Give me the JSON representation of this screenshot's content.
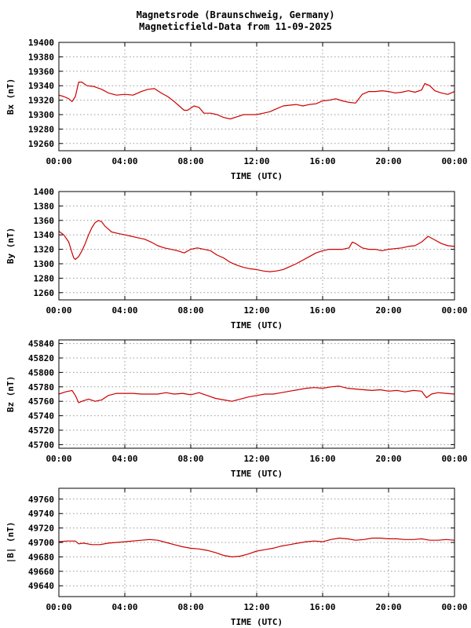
{
  "header": {
    "title": "Magnetsrode (Braunschweig, Germany)",
    "subtitle": "Magneticfield-Data from 11-09-2025"
  },
  "colors": {
    "trace": "#cc0000",
    "grid": "#999999",
    "frame": "#000000"
  },
  "chart_data": [
    {
      "type": "line",
      "ylabel": "Bx (nT)",
      "xlabel": "TIME (UTC)",
      "xlim": [
        0,
        24
      ],
      "xticks": [
        0,
        4,
        8,
        12,
        16,
        20,
        24
      ],
      "xtick_labels": [
        "00:00",
        "04:00",
        "08:00",
        "12:00",
        "16:00",
        "20:00",
        "00:00"
      ],
      "ylim": [
        19250,
        19400
      ],
      "yticks": [
        19260,
        19280,
        19300,
        19320,
        19340,
        19360,
        19380,
        19400
      ],
      "grid": true,
      "x": [
        0,
        0.3,
        0.6,
        0.8,
        1.0,
        1.2,
        1.4,
        1.7,
        2.1,
        2.6,
        3.0,
        3.5,
        4.0,
        4.5,
        5.0,
        5.4,
        5.8,
        6.2,
        6.6,
        7.0,
        7.3,
        7.6,
        7.8,
        8.2,
        8.5,
        8.8,
        9.2,
        9.6,
        10.0,
        10.4,
        10.8,
        11.2,
        11.6,
        12.0,
        12.4,
        12.8,
        13.2,
        13.6,
        14.0,
        14.4,
        14.8,
        15.2,
        15.6,
        16.0,
        16.4,
        16.8,
        17.2,
        17.6,
        18.0,
        18.4,
        18.8,
        19.2,
        19.6,
        20.0,
        20.4,
        20.8,
        21.2,
        21.6,
        22.0,
        22.2,
        22.5,
        22.8,
        23.2,
        23.6,
        24.0
      ],
      "values": [
        19327,
        19325,
        19322,
        19318,
        19325,
        19345,
        19345,
        19340,
        19339,
        19335,
        19330,
        19327,
        19328,
        19327,
        19332,
        19335,
        19336,
        19330,
        19325,
        19318,
        19312,
        19306,
        19306,
        19312,
        19310,
        19302,
        19302,
        19300,
        19296,
        19294,
        19297,
        19300,
        19300,
        19300,
        19302,
        19304,
        19308,
        19312,
        19313,
        19314,
        19312,
        19314,
        19315,
        19319,
        19320,
        19322,
        19319,
        19317,
        19316,
        19328,
        19332,
        19332,
        19333,
        19332,
        19330,
        19331,
        19333,
        19331,
        19334,
        19343,
        19340,
        19333,
        19330,
        19328,
        19332
      ]
    },
    {
      "type": "line",
      "ylabel": "By (nT)",
      "xlabel": "TIME (UTC)",
      "xlim": [
        0,
        24
      ],
      "xticks": [
        0,
        4,
        8,
        12,
        16,
        20,
        24
      ],
      "xtick_labels": [
        "00:00",
        "04:00",
        "08:00",
        "12:00",
        "16:00",
        "20:00",
        "00:00"
      ],
      "ylim": [
        1250,
        1400
      ],
      "yticks": [
        1260,
        1280,
        1300,
        1320,
        1340,
        1360,
        1380,
        1400
      ],
      "grid": true,
      "x": [
        0,
        0.3,
        0.6,
        0.8,
        0.9,
        1.0,
        1.2,
        1.4,
        1.6,
        1.8,
        2.0,
        2.2,
        2.4,
        2.6,
        2.8,
        3.0,
        3.2,
        3.6,
        4.0,
        4.4,
        4.8,
        5.2,
        5.6,
        6.0,
        6.4,
        6.8,
        7.2,
        7.6,
        8.0,
        8.4,
        8.8,
        9.2,
        9.6,
        10.0,
        10.4,
        10.8,
        11.2,
        11.6,
        12.0,
        12.4,
        12.8,
        13.2,
        13.6,
        14.0,
        14.4,
        14.8,
        15.2,
        15.6,
        16.0,
        16.4,
        16.8,
        17.2,
        17.6,
        17.8,
        18.0,
        18.4,
        18.8,
        19.2,
        19.6,
        20.0,
        20.4,
        20.8,
        21.2,
        21.6,
        22.0,
        22.4,
        22.8,
        23.2,
        23.6,
        24.0
      ],
      "values": [
        1345,
        1340,
        1330,
        1315,
        1308,
        1306,
        1310,
        1318,
        1328,
        1340,
        1350,
        1357,
        1360,
        1358,
        1352,
        1348,
        1344,
        1342,
        1340,
        1338,
        1336,
        1334,
        1330,
        1325,
        1322,
        1320,
        1318,
        1315,
        1320,
        1322,
        1320,
        1318,
        1312,
        1308,
        1302,
        1298,
        1295,
        1293,
        1292,
        1290,
        1289,
        1290,
        1292,
        1296,
        1300,
        1305,
        1310,
        1315,
        1318,
        1320,
        1320,
        1320,
        1322,
        1330,
        1328,
        1322,
        1320,
        1320,
        1318,
        1320,
        1321,
        1322,
        1324,
        1325,
        1330,
        1338,
        1333,
        1328,
        1325,
        1324
      ]
    },
    {
      "type": "line",
      "ylabel": "Bz (nT)",
      "xlabel": "TIME (UTC)",
      "xlim": [
        0,
        24
      ],
      "xticks": [
        0,
        4,
        8,
        12,
        16,
        20,
        24
      ],
      "xtick_labels": [
        "00:00",
        "04:00",
        "08:00",
        "12:00",
        "16:00",
        "20:00",
        "00:00"
      ],
      "ylim": [
        45695,
        45845
      ],
      "yticks": [
        45700,
        45720,
        45740,
        45760,
        45780,
        45800,
        45820,
        45840
      ],
      "grid": true,
      "x": [
        0,
        0.4,
        0.8,
        1.0,
        1.2,
        1.4,
        1.8,
        2.2,
        2.6,
        3.0,
        3.5,
        4.0,
        4.5,
        5.0,
        5.5,
        6.0,
        6.5,
        7.0,
        7.5,
        8.0,
        8.5,
        9.0,
        9.5,
        10.0,
        10.5,
        11.0,
        11.5,
        12.0,
        12.5,
        13.0,
        13.5,
        14.0,
        14.5,
        15.0,
        15.5,
        16.0,
        16.5,
        17.0,
        17.5,
        18.0,
        18.5,
        19.0,
        19.5,
        20.0,
        20.5,
        21.0,
        21.5,
        22.0,
        22.3,
        22.6,
        23.0,
        23.5,
        24.0
      ],
      "values": [
        45770,
        45773,
        45775,
        45768,
        45758,
        45760,
        45763,
        45760,
        45762,
        45768,
        45771,
        45771,
        45771,
        45770,
        45770,
        45770,
        45772,
        45770,
        45771,
        45769,
        45772,
        45768,
        45764,
        45762,
        45760,
        45763,
        45766,
        45768,
        45770,
        45770,
        45772,
        45774,
        45776,
        45778,
        45779,
        45778,
        45780,
        45781,
        45778,
        45777,
        45776,
        45775,
        45776,
        45774,
        45775,
        45773,
        45775,
        45774,
        45765,
        45770,
        45772,
        45771,
        45770
      ]
    },
    {
      "type": "line",
      "ylabel": "|B| (nT)",
      "xlabel": "TIME (UTC)",
      "xlim": [
        0,
        24
      ],
      "xticks": [
        0,
        4,
        8,
        12,
        16,
        20,
        24
      ],
      "xtick_labels": [
        "00:00",
        "04:00",
        "08:00",
        "12:00",
        "16:00",
        "20:00",
        "00:00"
      ],
      "ylim": [
        49625,
        49775
      ],
      "yticks": [
        49640,
        49660,
        49680,
        49700,
        49720,
        49740,
        49760
      ],
      "grid": true,
      "x": [
        0,
        0.5,
        1.0,
        1.2,
        1.5,
        2.0,
        2.5,
        3.0,
        4.0,
        5.0,
        5.5,
        6.0,
        6.5,
        7.0,
        7.5,
        8.0,
        8.5,
        9.0,
        9.5,
        10.0,
        10.5,
        11.0,
        11.5,
        12.0,
        12.5,
        13.0,
        13.5,
        14.0,
        14.5,
        15.0,
        15.5,
        16.0,
        16.5,
        17.0,
        17.5,
        18.0,
        18.5,
        19.0,
        19.5,
        20.0,
        20.5,
        21.0,
        21.5,
        22.0,
        22.5,
        23.0,
        23.5,
        24.0
      ],
      "values": [
        49701,
        49702,
        49702,
        49698,
        49699,
        49697,
        49697,
        49699,
        49701,
        49703,
        49704,
        49703,
        49700,
        49697,
        49694,
        49692,
        49691,
        49689,
        49686,
        49682,
        49680,
        49681,
        49684,
        49688,
        49690,
        49692,
        49695,
        49697,
        49699,
        49701,
        49702,
        49701,
        49704,
        49706,
        49705,
        49703,
        49704,
        49706,
        49706,
        49705,
        49705,
        49704,
        49704,
        49705,
        49703,
        49703,
        49704,
        49703
      ]
    }
  ]
}
